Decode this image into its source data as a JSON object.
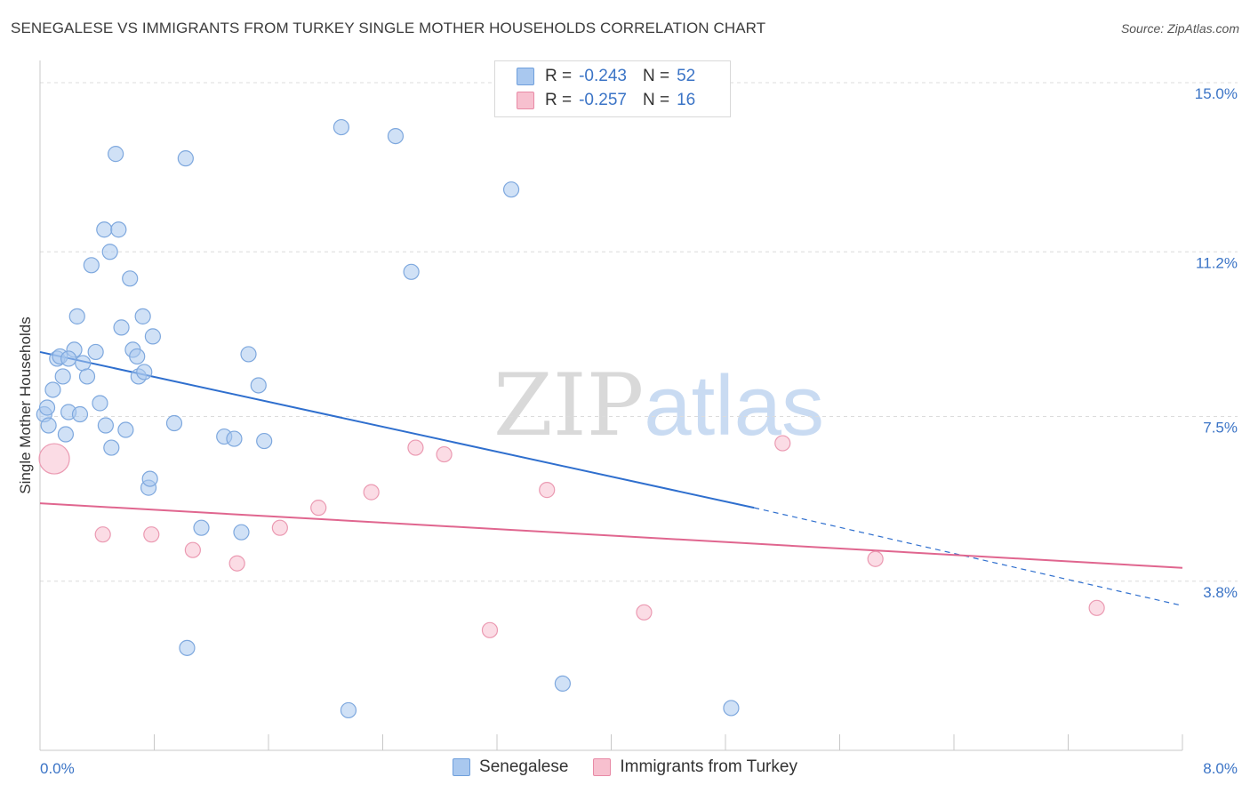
{
  "title": "SENEGALESE VS IMMIGRANTS FROM TURKEY SINGLE MOTHER HOUSEHOLDS CORRELATION CHART",
  "source": "Source: ZipAtlas.com",
  "watermark": {
    "zip": "ZIP",
    "atlas": "atlas"
  },
  "legend": {
    "r_label": "R =",
    "n_label": "N =",
    "rows": [
      {
        "r": "-0.243",
        "n": "52",
        "color": "#a9c8ef",
        "border": "#6f9fdc"
      },
      {
        "r": "-0.257",
        "n": "16",
        "color": "#f7c0cf",
        "border": "#e88aa6"
      }
    ]
  },
  "bottom_legend": [
    "Senegalese",
    "Immigrants from Turkey"
  ],
  "chart_data": {
    "type": "scatter",
    "title": "SENEGALESE VS IMMIGRANTS FROM TURKEY SINGLE MOTHER HOUSEHOLDS CORRELATION CHART",
    "xlabel": "",
    "ylabel": "Single Mother Households",
    "xlim": [
      0,
      8
    ],
    "ylim": [
      0,
      15.3
    ],
    "x_tick_labels": [
      "0.0%",
      "8.0%"
    ],
    "y_ticks": [
      3.8,
      7.5,
      11.2,
      15.0
    ],
    "y_tick_labels": [
      "3.8%",
      "7.5%",
      "11.2%",
      "15.0%"
    ],
    "grid": true,
    "legend_position": "top-center",
    "series": [
      {
        "name": "Senegalese",
        "color": "#a9c8ef",
        "stroke": "#7ea8de",
        "line_color": "#2f6fce",
        "trend": {
          "x0": 0.0,
          "y0": 8.95,
          "x1": 5.0,
          "y1": 5.45,
          "dash_to_x": 8.0,
          "dash_to_y": 3.25
        },
        "points": [
          [
            0.03,
            7.55
          ],
          [
            0.05,
            7.7
          ],
          [
            0.06,
            7.3
          ],
          [
            0.09,
            8.1
          ],
          [
            0.12,
            8.8
          ],
          [
            0.14,
            8.85
          ],
          [
            0.16,
            8.4
          ],
          [
            0.18,
            7.1
          ],
          [
            0.2,
            7.6
          ],
          [
            0.24,
            9.0
          ],
          [
            0.26,
            9.75
          ],
          [
            0.28,
            7.55
          ],
          [
            0.3,
            8.7
          ],
          [
            0.33,
            8.4
          ],
          [
            0.36,
            10.9
          ],
          [
            0.39,
            8.95
          ],
          [
            0.42,
            7.8
          ],
          [
            0.45,
            11.7
          ],
          [
            0.46,
            7.3
          ],
          [
            0.49,
            11.2
          ],
          [
            0.5,
            6.8
          ],
          [
            0.53,
            13.4
          ],
          [
            0.55,
            11.7
          ],
          [
            0.57,
            9.5
          ],
          [
            0.6,
            7.2
          ],
          [
            0.63,
            10.6
          ],
          [
            0.65,
            9.0
          ],
          [
            0.68,
            8.85
          ],
          [
            0.69,
            8.4
          ],
          [
            0.72,
            9.75
          ],
          [
            0.73,
            8.5
          ],
          [
            0.76,
            5.9
          ],
          [
            0.77,
            6.1
          ],
          [
            0.79,
            9.3
          ],
          [
            0.94,
            7.35
          ],
          [
            1.02,
            13.3
          ],
          [
            1.03,
            2.3
          ],
          [
            1.13,
            5.0
          ],
          [
            1.29,
            7.05
          ],
          [
            1.36,
            7.0
          ],
          [
            1.41,
            4.9
          ],
          [
            1.46,
            8.9
          ],
          [
            1.53,
            8.2
          ],
          [
            1.57,
            6.95
          ],
          [
            2.11,
            14.0
          ],
          [
            2.16,
            0.9
          ],
          [
            2.49,
            13.8
          ],
          [
            2.6,
            10.75
          ],
          [
            3.3,
            12.6
          ],
          [
            3.66,
            1.5
          ],
          [
            4.84,
            0.95
          ],
          [
            0.2,
            8.8
          ]
        ]
      },
      {
        "name": "Immigrants from Turkey",
        "color": "#f7c0cf",
        "stroke": "#eb9ab2",
        "line_color": "#e0668f",
        "trend": {
          "x0": 0.0,
          "y0": 5.55,
          "x1": 8.0,
          "y1": 4.1
        },
        "points": [
          [
            0.1,
            6.55,
            "large"
          ],
          [
            0.44,
            4.85
          ],
          [
            0.78,
            4.85
          ],
          [
            1.07,
            4.5
          ],
          [
            1.38,
            4.2
          ],
          [
            1.68,
            5.0
          ],
          [
            1.95,
            5.45
          ],
          [
            2.32,
            5.8
          ],
          [
            2.63,
            6.8
          ],
          [
            2.83,
            6.65
          ],
          [
            3.15,
            2.7
          ],
          [
            3.55,
            5.85
          ],
          [
            4.23,
            3.1
          ],
          [
            5.2,
            6.9
          ],
          [
            5.85,
            4.3
          ],
          [
            7.4,
            3.2
          ]
        ]
      }
    ]
  }
}
